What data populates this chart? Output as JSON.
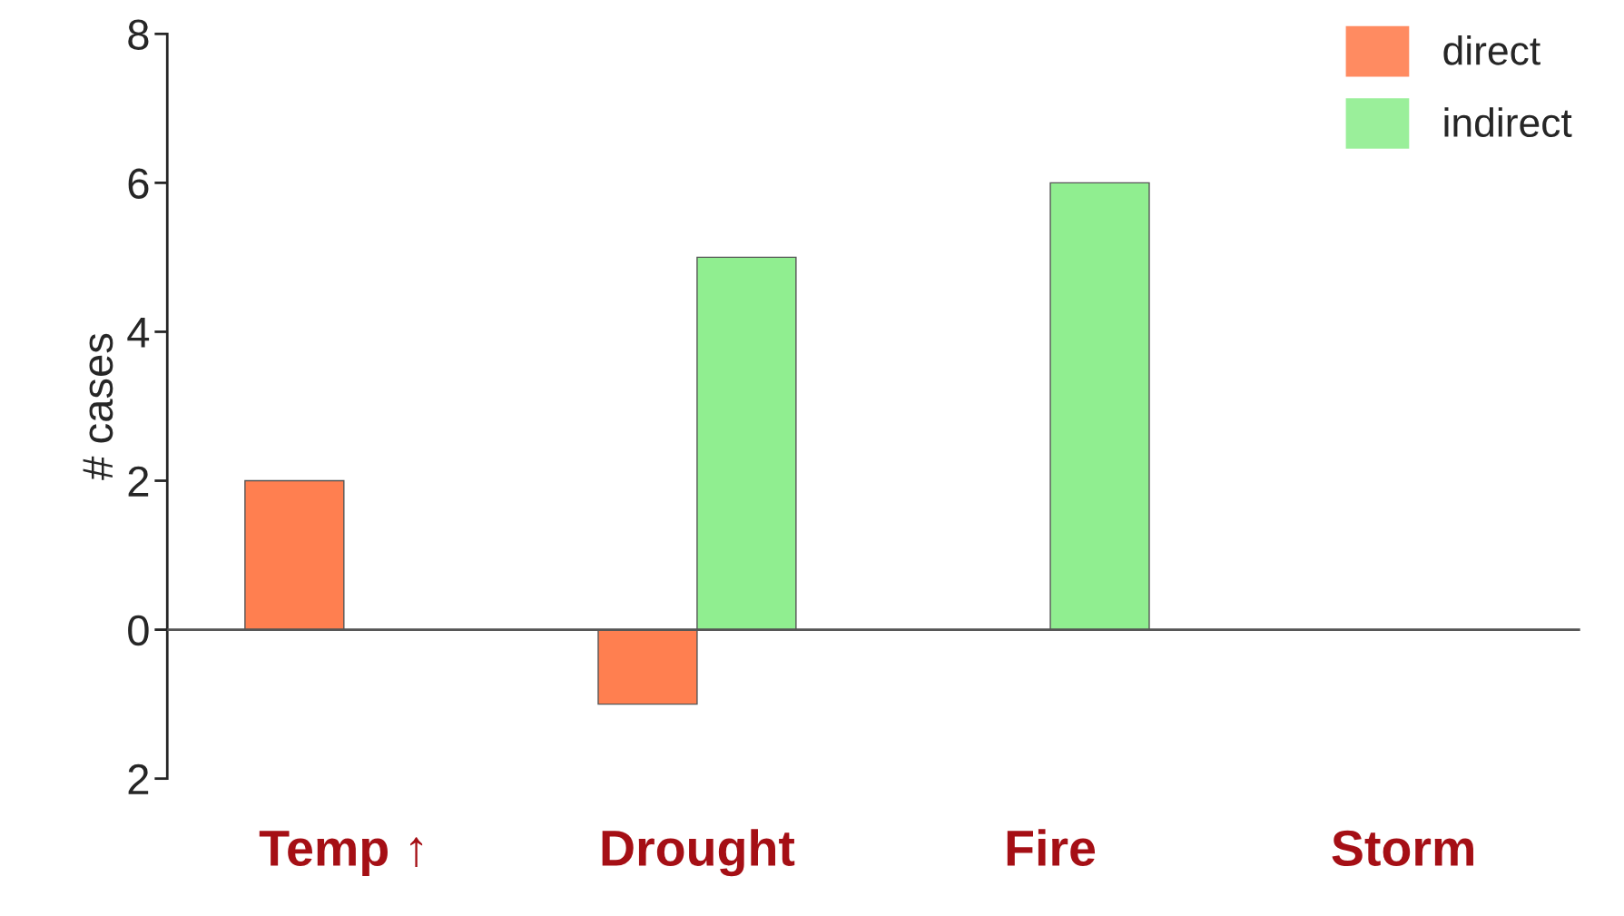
{
  "chart_data": {
    "type": "bar",
    "ylabel": "# cases",
    "categories": [
      "Temp ↑",
      "Drought",
      "Fire",
      "Storm"
    ],
    "series": [
      {
        "name": "direct",
        "color": "#ff7f50",
        "values": [
          2,
          -1,
          null,
          null
        ]
      },
      {
        "name": "indirect",
        "color": "#90ee90",
        "values": [
          null,
          5,
          6,
          null
        ]
      }
    ],
    "ylim": [
      -2,
      8
    ],
    "yticks": [
      {
        "value": -2,
        "label": "2"
      },
      0,
      2,
      4,
      6,
      8
    ],
    "ref_lines": [
      {
        "axis": "y",
        "value": 0,
        "color": "#555555"
      }
    ],
    "grid": false,
    "legend": "top right"
  }
}
